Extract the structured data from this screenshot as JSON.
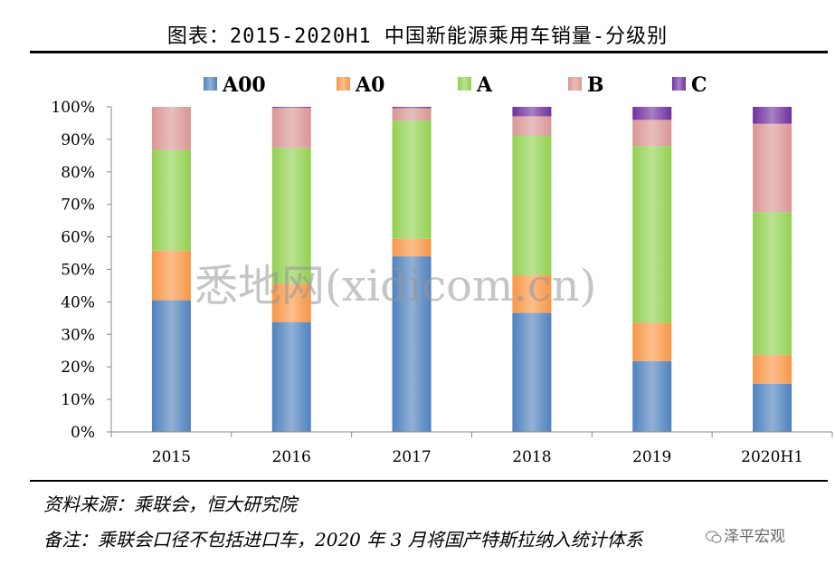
{
  "chart_data": {
    "type": "bar",
    "stacked": true,
    "title": "图表：2015-2020H1 中国新能源乘用车销量-分级别",
    "categories": [
      "2015",
      "2016",
      "2017",
      "2018",
      "2019",
      "2020H1"
    ],
    "series": [
      {
        "name": "A00",
        "color": "#4f81bd",
        "values": [
          40.5,
          33.8,
          54.0,
          36.6,
          21.8,
          14.8
        ]
      },
      {
        "name": "A0",
        "color": "#f79646",
        "values": [
          15.3,
          11.8,
          5.4,
          11.6,
          11.8,
          8.9
        ]
      },
      {
        "name": "A",
        "color": "#92d050",
        "values": [
          31.0,
          41.8,
          36.4,
          42.9,
          54.4,
          43.9
        ]
      },
      {
        "name": "B",
        "color": "#d99694",
        "values": [
          13.2,
          12.3,
          3.8,
          6.0,
          8.0,
          27.2
        ]
      },
      {
        "name": "C",
        "color": "#7030a0",
        "values": [
          0.0,
          0.3,
          0.4,
          2.9,
          4.0,
          5.2
        ]
      }
    ],
    "yticks": [
      "0%",
      "10%",
      "20%",
      "30%",
      "40%",
      "50%",
      "60%",
      "70%",
      "80%",
      "90%",
      "100%"
    ],
    "ylim": [
      0,
      100
    ],
    "legend_position": "top",
    "grid": false
  },
  "notes": {
    "source": "资料来源：乘联会，恒大研究院",
    "remark": "备注：乘联会口径不包括进口车，2020 年 3 月将国产特斯拉纳入统计体系"
  },
  "watermark": "悉地网(xidicom.cn)",
  "badge": {
    "icon": "wechat-icon",
    "text": "泽平宏观"
  }
}
